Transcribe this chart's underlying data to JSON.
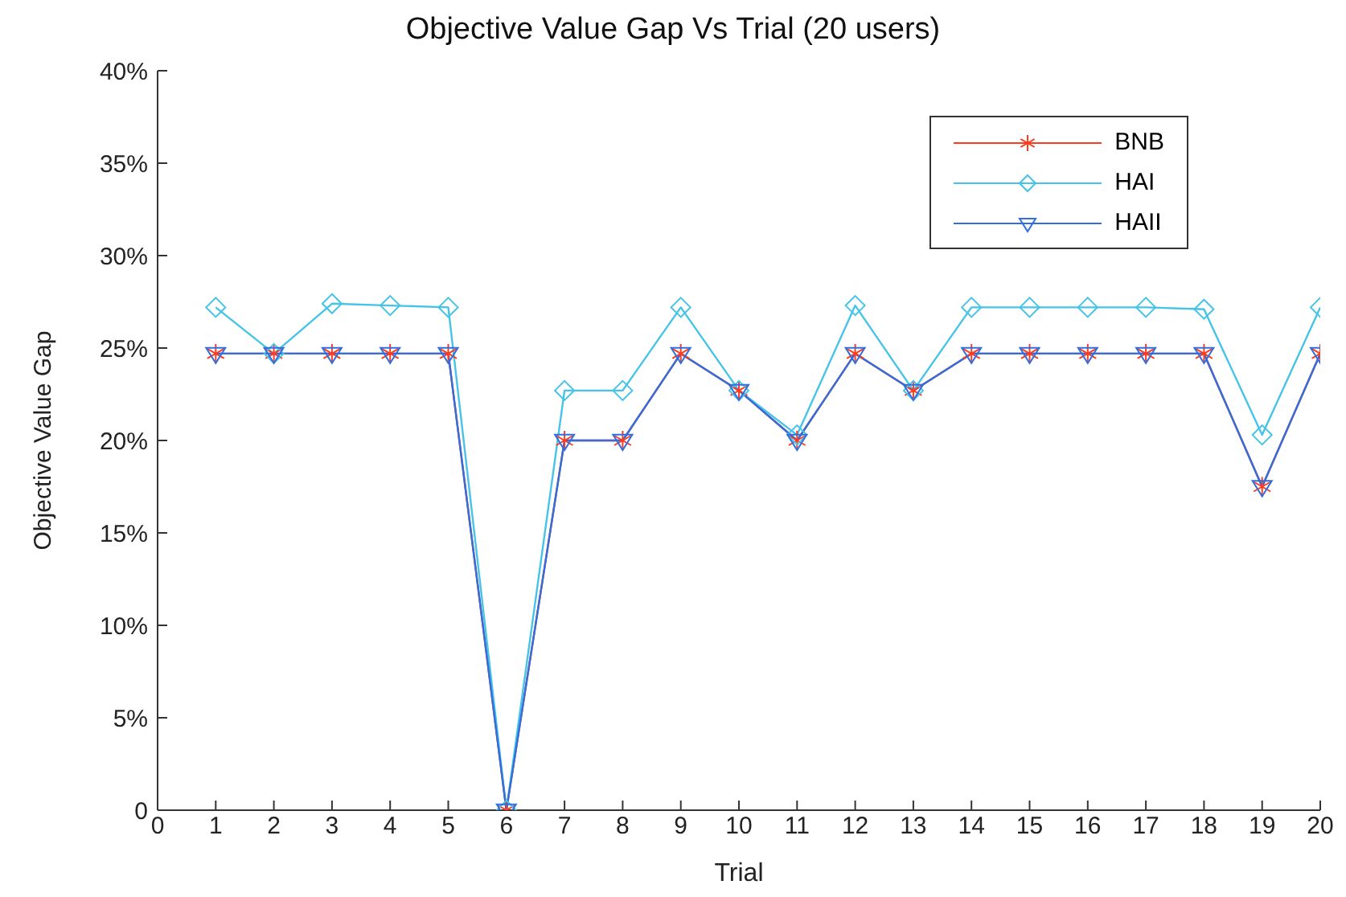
{
  "chart_data": {
    "type": "line",
    "title": "Objective Value Gap Vs Trial (20 users)",
    "xlabel": "Trial",
    "ylabel": "Objective Value Gap",
    "x": [
      1,
      2,
      3,
      4,
      5,
      6,
      7,
      8,
      9,
      10,
      11,
      12,
      13,
      14,
      15,
      16,
      17,
      18,
      19,
      20
    ],
    "xlim": [
      0,
      20
    ],
    "xticks": [
      0,
      1,
      2,
      3,
      4,
      5,
      6,
      7,
      8,
      9,
      10,
      11,
      12,
      13,
      14,
      15,
      16,
      17,
      18,
      19,
      20
    ],
    "ylim": [
      0,
      40
    ],
    "yticks": [
      {
        "value": 0,
        "label": "0"
      },
      {
        "value": 5,
        "label": "5%"
      },
      {
        "value": 10,
        "label": "10%"
      },
      {
        "value": 15,
        "label": "15%"
      },
      {
        "value": 20,
        "label": "20%"
      },
      {
        "value": 25,
        "label": "25%"
      },
      {
        "value": 30,
        "label": "30%"
      },
      {
        "value": 35,
        "label": "35%"
      },
      {
        "value": 40,
        "label": "40%"
      }
    ],
    "grid": false,
    "legend": "top right",
    "series": [
      {
        "name": "BNB",
        "color": "#ff3b1f",
        "marker": "cross",
        "values": [
          24.7,
          24.7,
          24.7,
          24.7,
          24.7,
          0,
          20,
          20,
          24.7,
          22.7,
          20,
          24.7,
          22.7,
          24.7,
          24.7,
          24.7,
          24.7,
          24.7,
          17.5,
          24.7
        ]
      },
      {
        "name": "HAI",
        "color": "#45c3e8",
        "marker": "diamond",
        "values": [
          27.2,
          24.7,
          27.4,
          27.3,
          27.2,
          0,
          22.7,
          22.7,
          27.2,
          22.7,
          20.3,
          27.3,
          22.7,
          27.2,
          27.2,
          27.2,
          27.2,
          27.1,
          20.3,
          27.2
        ]
      },
      {
        "name": "HAII",
        "color": "#2f6fe0",
        "marker": "triangle",
        "values": [
          24.7,
          24.7,
          24.7,
          24.7,
          24.7,
          0,
          20,
          20,
          24.7,
          22.7,
          20,
          24.7,
          22.7,
          24.7,
          24.7,
          24.7,
          24.7,
          24.7,
          17.5,
          24.7
        ]
      }
    ]
  }
}
